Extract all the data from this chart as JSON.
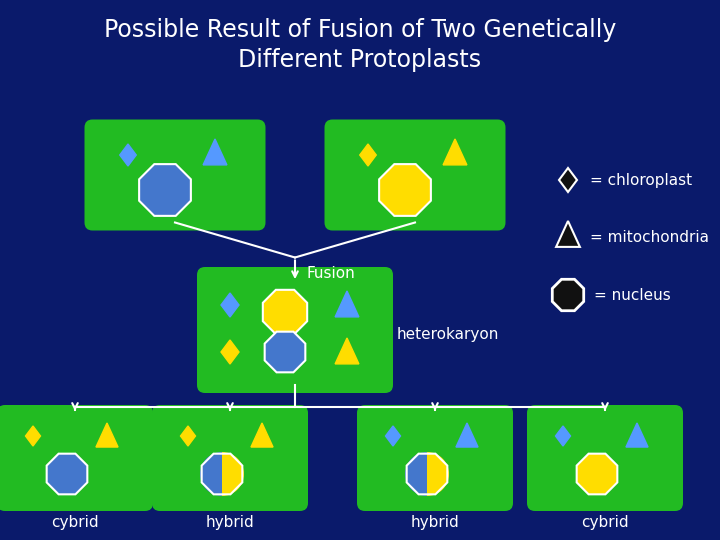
{
  "bg_color": "#0a1a6b",
  "green_cell": "#22bb22",
  "blue_nucleus": "#4477cc",
  "yellow_nucleus": "#ffdd00",
  "blue_diamond": "#5599ff",
  "yellow_diamond": "#ffdd00",
  "blue_triangle": "#5599ff",
  "yellow_triangle": "#ffdd00",
  "white": "#ffffff",
  "title_line1": "Possible Result of Fusion of Two Genetically",
  "title_line2": "Different Protoplasts",
  "title_color": "#ffffff",
  "title_fontsize": 17,
  "label_color": "#ffffff",
  "fusion_label": "Fusion",
  "heterokaryon_label": "heterokaryon",
  "cybrid_label": "cybrid",
  "hybrid_label": "hybrid",
  "bottom_labels": [
    "cybrid",
    "hybrid",
    "hybrid",
    "cybrid"
  ]
}
